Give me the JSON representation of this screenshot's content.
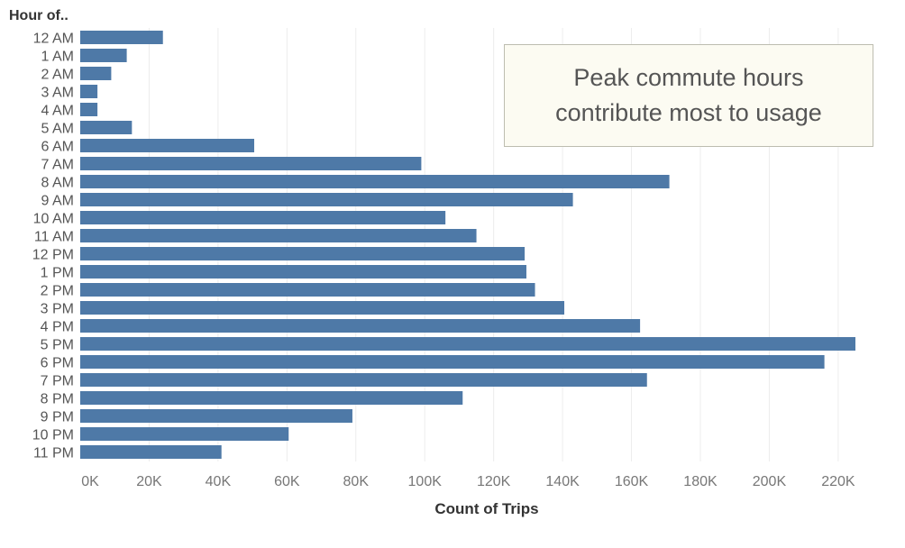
{
  "chart_data": {
    "type": "bar",
    "orientation": "horizontal",
    "row_header": "Hour of..",
    "xlabel": "Count of Trips",
    "categories": [
      "12 AM",
      "1 AM",
      "2 AM",
      "3 AM",
      "4 AM",
      "5 AM",
      "6 AM",
      "7 AM",
      "8 AM",
      "9 AM",
      "10 AM",
      "11 AM",
      "12 PM",
      "1 PM",
      "2 PM",
      "3 PM",
      "4 PM",
      "5 PM",
      "6 PM",
      "7 PM",
      "8 PM",
      "9 PM",
      "10 PM",
      "11 PM"
    ],
    "values": [
      24000,
      13500,
      9000,
      5000,
      5000,
      15000,
      50500,
      99000,
      171000,
      143000,
      106000,
      115000,
      129000,
      129500,
      132000,
      140500,
      162500,
      225000,
      216000,
      164500,
      111000,
      79000,
      60500,
      41000
    ],
    "xlim": [
      0,
      230000
    ],
    "xticks": [
      0,
      20000,
      40000,
      60000,
      80000,
      100000,
      120000,
      140000,
      160000,
      180000,
      200000,
      220000
    ],
    "xtick_labels": [
      "0K",
      "20K",
      "40K",
      "60K",
      "80K",
      "100K",
      "120K",
      "140K",
      "160K",
      "180K",
      "200K",
      "220K"
    ],
    "grid": "vertical",
    "bar_color": "#4e79a7",
    "annotation": "Peak commute hours\ncontribute most to usage"
  }
}
